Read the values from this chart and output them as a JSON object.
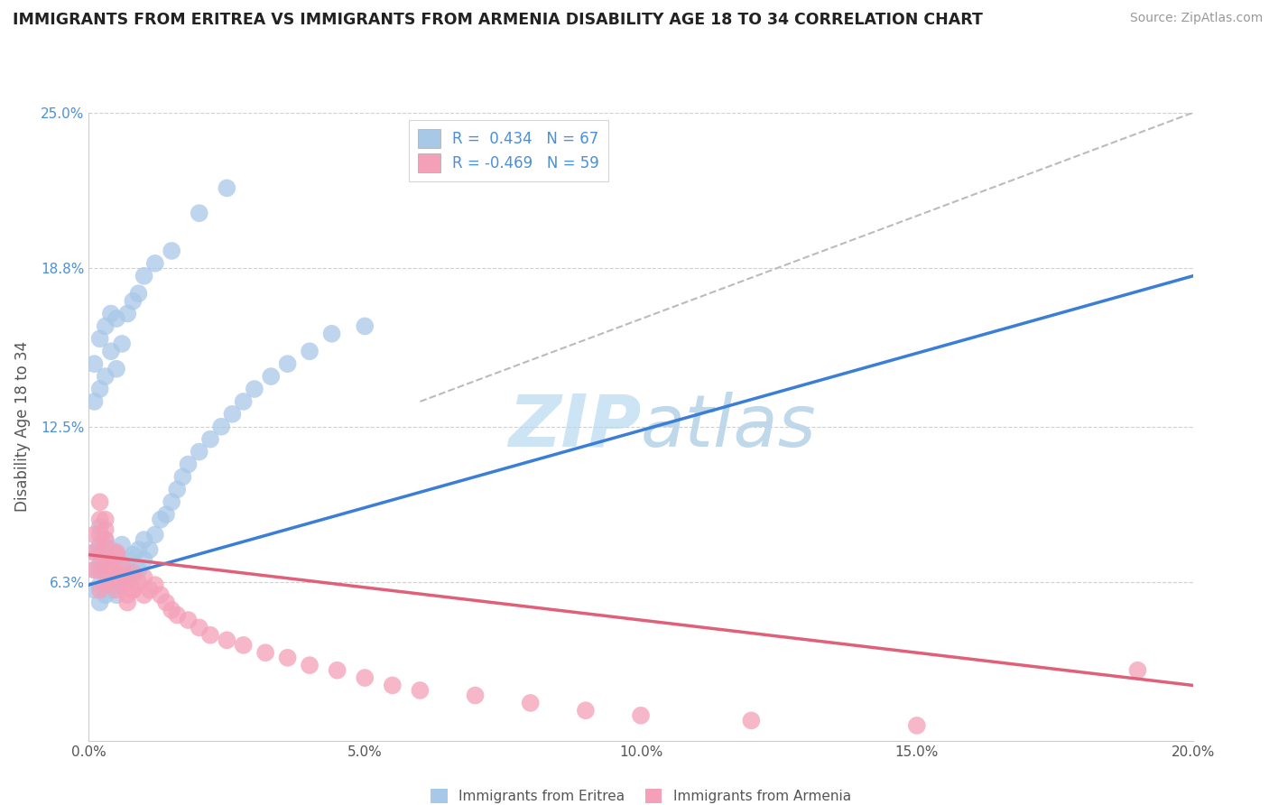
{
  "title": "IMMIGRANTS FROM ERITREA VS IMMIGRANTS FROM ARMENIA DISABILITY AGE 18 TO 34 CORRELATION CHART",
  "source": "Source: ZipAtlas.com",
  "ylabel": "Disability Age 18 to 34",
  "r_eritrea": 0.434,
  "n_eritrea": 67,
  "r_armenia": -0.469,
  "n_armenia": 59,
  "xlim": [
    0.0,
    0.2
  ],
  "ylim": [
    0.0,
    0.25
  ],
  "yticks": [
    0.063,
    0.125,
    0.188,
    0.25
  ],
  "ytick_labels": [
    "6.3%",
    "12.5%",
    "18.8%",
    "25.0%"
  ],
  "xticks": [
    0.0,
    0.05,
    0.1,
    0.15,
    0.2
  ],
  "xtick_labels": [
    "0.0%",
    "5.0%",
    "10.0%",
    "15.0%",
    "20.0%"
  ],
  "color_eritrea": "#a8c8e8",
  "color_eritrea_line": "#3a7fd5",
  "color_armenia": "#f4a0b8",
  "color_armenia_line": "#e0607a",
  "watermark_color": "#cde4f5",
  "scatter_eritrea_x": [
    0.001,
    0.001,
    0.001,
    0.002,
    0.002,
    0.002,
    0.002,
    0.002,
    0.003,
    0.003,
    0.003,
    0.003,
    0.004,
    0.004,
    0.004,
    0.005,
    0.005,
    0.005,
    0.006,
    0.006,
    0.006,
    0.007,
    0.007,
    0.008,
    0.008,
    0.009,
    0.009,
    0.01,
    0.01,
    0.011,
    0.012,
    0.013,
    0.014,
    0.015,
    0.016,
    0.017,
    0.018,
    0.02,
    0.022,
    0.024,
    0.026,
    0.028,
    0.03,
    0.033,
    0.036,
    0.04,
    0.044,
    0.05,
    0.001,
    0.001,
    0.002,
    0.002,
    0.003,
    0.003,
    0.004,
    0.004,
    0.005,
    0.005,
    0.006,
    0.007,
    0.008,
    0.009,
    0.01,
    0.012,
    0.015,
    0.02,
    0.025
  ],
  "scatter_eritrea_y": [
    0.06,
    0.068,
    0.075,
    0.055,
    0.062,
    0.07,
    0.078,
    0.085,
    0.058,
    0.065,
    0.073,
    0.08,
    0.06,
    0.068,
    0.076,
    0.058,
    0.066,
    0.074,
    0.062,
    0.07,
    0.078,
    0.064,
    0.072,
    0.066,
    0.074,
    0.068,
    0.076,
    0.072,
    0.08,
    0.076,
    0.082,
    0.088,
    0.09,
    0.095,
    0.1,
    0.105,
    0.11,
    0.115,
    0.12,
    0.125,
    0.13,
    0.135,
    0.14,
    0.145,
    0.15,
    0.155,
    0.162,
    0.165,
    0.135,
    0.15,
    0.14,
    0.16,
    0.145,
    0.165,
    0.155,
    0.17,
    0.148,
    0.168,
    0.158,
    0.17,
    0.175,
    0.178,
    0.185,
    0.19,
    0.195,
    0.21,
    0.22
  ],
  "scatter_armenia_x": [
    0.001,
    0.001,
    0.001,
    0.002,
    0.002,
    0.002,
    0.002,
    0.003,
    0.003,
    0.003,
    0.003,
    0.004,
    0.004,
    0.005,
    0.005,
    0.005,
    0.006,
    0.006,
    0.007,
    0.007,
    0.008,
    0.008,
    0.009,
    0.01,
    0.01,
    0.011,
    0.012,
    0.013,
    0.014,
    0.015,
    0.016,
    0.018,
    0.02,
    0.022,
    0.025,
    0.028,
    0.032,
    0.036,
    0.04,
    0.045,
    0.05,
    0.055,
    0.06,
    0.07,
    0.08,
    0.09,
    0.1,
    0.12,
    0.15,
    0.19,
    0.002,
    0.002,
    0.003,
    0.003,
    0.004,
    0.005,
    0.006,
    0.007,
    0.008
  ],
  "scatter_armenia_y": [
    0.068,
    0.075,
    0.082,
    0.06,
    0.068,
    0.075,
    0.082,
    0.062,
    0.07,
    0.077,
    0.084,
    0.065,
    0.072,
    0.06,
    0.067,
    0.074,
    0.062,
    0.07,
    0.058,
    0.065,
    0.06,
    0.067,
    0.063,
    0.058,
    0.065,
    0.06,
    0.062,
    0.058,
    0.055,
    0.052,
    0.05,
    0.048,
    0.045,
    0.042,
    0.04,
    0.038,
    0.035,
    0.033,
    0.03,
    0.028,
    0.025,
    0.022,
    0.02,
    0.018,
    0.015,
    0.012,
    0.01,
    0.008,
    0.006,
    0.028,
    0.088,
    0.095,
    0.08,
    0.088,
    0.07,
    0.075,
    0.065,
    0.055,
    0.06
  ],
  "trendline_blue_x0": 0.0,
  "trendline_blue_y0": 0.062,
  "trendline_blue_x1": 0.2,
  "trendline_blue_y1": 0.185,
  "trendline_pink_x0": 0.0,
  "trendline_pink_y0": 0.074,
  "trendline_pink_x1": 0.2,
  "trendline_pink_y1": 0.022,
  "dashline_x0": 0.06,
  "dashline_y0": 0.135,
  "dashline_x1": 0.2,
  "dashline_y1": 0.25
}
